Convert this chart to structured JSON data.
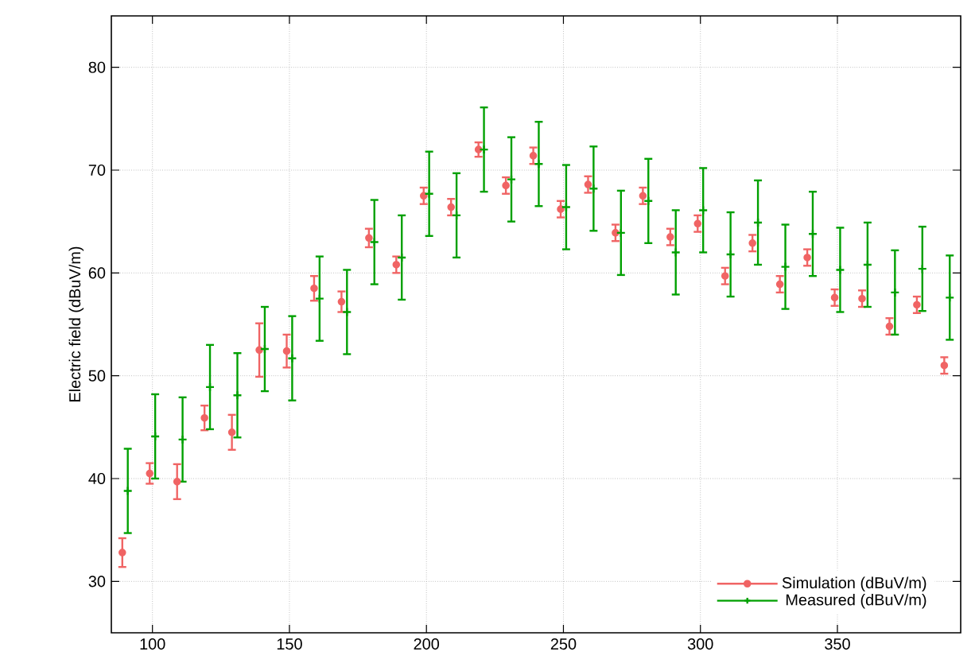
{
  "chart_data": {
    "type": "scatter",
    "ylabel": "Electric field (dBuV/m)",
    "xlim": [
      85,
      395
    ],
    "ylim": [
      25,
      85
    ],
    "xticks": [
      100,
      150,
      200,
      250,
      300,
      350
    ],
    "yticks": [
      30,
      40,
      50,
      60,
      70,
      80
    ],
    "grid": true,
    "legend": "bottom right",
    "series": [
      {
        "name": "Simulation (dBuV/m)",
        "color": "#f06464",
        "marker": "circle",
        "x": [
          89,
          99,
          109,
          119,
          129,
          139,
          149,
          159,
          169,
          179,
          189,
          199,
          209,
          219,
          229,
          239,
          249,
          259,
          269,
          279,
          289,
          299,
          309,
          319,
          329,
          339,
          349,
          359,
          369,
          379,
          389
        ],
        "values": [
          32.8,
          40.5,
          39.7,
          45.9,
          44.5,
          52.5,
          52.4,
          58.5,
          57.2,
          63.4,
          60.8,
          67.5,
          66.4,
          72.0,
          68.5,
          71.4,
          66.2,
          68.6,
          63.9,
          67.5,
          63.5,
          64.8,
          59.7,
          62.9,
          58.9,
          61.5,
          57.6,
          57.5,
          54.8,
          56.9,
          51.0
        ],
        "errors": [
          1.4,
          1.0,
          1.7,
          1.2,
          1.7,
          2.6,
          1.6,
          1.2,
          1.0,
          0.9,
          0.8,
          0.8,
          0.8,
          0.7,
          0.8,
          0.8,
          0.8,
          0.8,
          0.8,
          0.8,
          0.8,
          0.8,
          0.8,
          0.8,
          0.8,
          0.8,
          0.8,
          0.8,
          0.8,
          0.8,
          0.8
        ]
      },
      {
        "name": "Measured (dBuV/m)",
        "color": "#00a000",
        "marker": "cross",
        "x": [
          91,
          101,
          111,
          121,
          131,
          141,
          151,
          161,
          171,
          181,
          191,
          201,
          211,
          221,
          231,
          241,
          251,
          261,
          271,
          281,
          291,
          301,
          311,
          321,
          331,
          341,
          351,
          361,
          371,
          381,
          391
        ],
        "values": [
          38.8,
          44.1,
          43.8,
          48.9,
          48.1,
          52.6,
          51.7,
          57.5,
          56.2,
          63.0,
          61.5,
          67.7,
          65.6,
          72.0,
          69.1,
          70.6,
          66.4,
          68.2,
          63.9,
          67.0,
          62.0,
          66.1,
          61.8,
          64.9,
          60.6,
          63.8,
          60.3,
          60.8,
          58.1,
          60.4,
          57.6
        ],
        "errors": [
          4.1,
          4.1,
          4.1,
          4.1,
          4.1,
          4.1,
          4.1,
          4.1,
          4.1,
          4.1,
          4.1,
          4.1,
          4.1,
          4.1,
          4.1,
          4.1,
          4.1,
          4.1,
          4.1,
          4.1,
          4.1,
          4.1,
          4.1,
          4.1,
          4.1,
          4.1,
          4.1,
          4.1,
          4.1,
          4.1,
          4.1
        ]
      }
    ]
  }
}
